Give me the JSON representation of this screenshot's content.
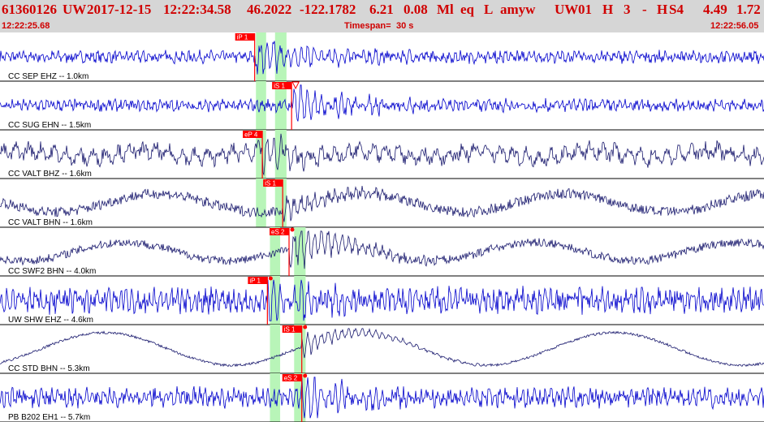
{
  "header": {
    "event_id": "61360126",
    "network": "UW",
    "date": "2017-12-15",
    "time": "12:22:34.58",
    "lat": "46.2022",
    "lon": "-122.1782",
    "depth": "6.21",
    "magnitude": "0.08",
    "mag_type": "Ml",
    "event_type": "eq",
    "flag": "L",
    "author": "amyw",
    "src_net": "UW",
    "version": "01",
    "quality": "H",
    "nph": "3",
    "dash": "-",
    "fix": "H",
    "nsta": "S4",
    "dist": "4.49",
    "rms": "1.72"
  },
  "timebar": {
    "start": "12:22:25.68",
    "timespan_label": "Timespan=",
    "timespan_value": "30 s",
    "end": "12:22:56.05"
  },
  "colors": {
    "header_bg": "#d6d6d6",
    "header_text": "#d00000",
    "pick_box": "#ff0000",
    "pick_text": "#ffffff",
    "window_green": "#b8f5b8",
    "trace_blue": "#0000cc",
    "trace_navy": "#1a1a6e"
  },
  "traces": [
    {
      "label": "CC SEP EHZ -- 1.0km",
      "color": "#0000cc",
      "style": "hf",
      "noise": 0.22,
      "signal": 0.9,
      "picks": [
        {
          "label": "iP 1",
          "t": 10.0
        }
      ],
      "green": [
        10.05,
        10.45
      ],
      "green2": [
        10.8,
        11.25
      ],
      "marker": ""
    },
    {
      "label": "CC SUG EHN -- 1.5km",
      "color": "#0000cc",
      "style": "hf",
      "noise": 0.22,
      "signal": 0.95,
      "picks": [
        {
          "label": "iS 1",
          "t": 11.45
        }
      ],
      "green": [
        10.05,
        10.45
      ],
      "green2": [
        10.8,
        11.25
      ],
      "marker": "triangle"
    },
    {
      "label": "CC VALT BHZ -- 1.6km",
      "color": "#1a1a6e",
      "style": "mid",
      "noise": 0.3,
      "signal": 0.7,
      "picks": [
        {
          "label": "eP 4",
          "t": 10.3
        }
      ],
      "green": [
        10.05,
        10.45
      ],
      "green2": [
        10.8,
        11.25
      ],
      "marker": ""
    },
    {
      "label": "CC VALT BHN -- 1.6km",
      "color": "#1a1a6e",
      "style": "lp",
      "noise": 0.25,
      "signal": 0.5,
      "picks": [
        {
          "label": "iS 1",
          "t": 11.1
        }
      ],
      "green": [
        10.05,
        10.45
      ],
      "green2": [
        10.8,
        11.25
      ],
      "marker": ""
    },
    {
      "label": "CC SWF2 BHN -- 4.0km",
      "color": "#1a1a6e",
      "style": "lp",
      "noise": 0.2,
      "signal": 0.95,
      "picks": [
        {
          "label": "eS 2",
          "t": 11.35
        }
      ],
      "green": [
        10.6,
        11.0
      ],
      "green2": [
        11.55,
        12.0
      ],
      "marker": "dot"
    },
    {
      "label": "UW SHW EHZ -- 4.6km",
      "color": "#0000cc",
      "style": "hf",
      "noise": 0.45,
      "signal": 0.9,
      "picks": [
        {
          "label": "iP 1",
          "t": 10.5
        }
      ],
      "green": [
        10.6,
        11.0
      ],
      "green2": [
        11.55,
        12.0
      ],
      "marker": "dot"
    },
    {
      "label": "CC STD BHN -- 5.3km",
      "color": "#1a1a6e",
      "style": "lp2",
      "noise": 0.2,
      "signal": 0.5,
      "picks": [
        {
          "label": "iS 1",
          "t": 11.85
        }
      ],
      "green": [
        10.6,
        11.0
      ],
      "green2": [
        11.55,
        12.0
      ],
      "marker": "dot"
    },
    {
      "label": "PB B202 EH1 -- 5.7km",
      "color": "#0000cc",
      "style": "hf",
      "noise": 0.35,
      "signal": 0.9,
      "picks": [
        {
          "label": "eS 2",
          "t": 11.85
        }
      ],
      "green": [
        10.6,
        11.0
      ],
      "green2": [
        11.55,
        12.0
      ],
      "marker": "dot"
    }
  ]
}
